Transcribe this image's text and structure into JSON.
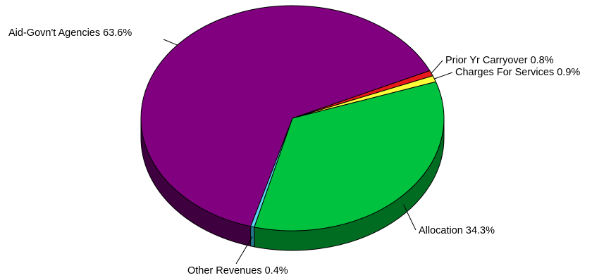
{
  "chart_data": {
    "type": "pie",
    "style": "3d-pie",
    "legend": "none",
    "slices": [
      {
        "label": "Prior Yr Carryover",
        "value": 0.8,
        "display": "0.8%",
        "color": "#e8191c",
        "side_color": "#7a0a0c"
      },
      {
        "label": "Charges For Services",
        "value": 0.9,
        "display": "0.9%",
        "color": "#fdfd3a",
        "side_color": "#8f8f10"
      },
      {
        "label": "Allocation",
        "value": 34.3,
        "display": "34.3%",
        "color": "#00c23f",
        "side_color": "#006c22"
      },
      {
        "label": "Other Revenues",
        "value": 0.4,
        "display": "0.4%",
        "color": "#57d3f0",
        "side_color": "#247a8c"
      },
      {
        "label": "Aid-Govn't Agencies",
        "value": 63.6,
        "display": "63.6%",
        "color": "#800080",
        "side_color": "#3f003f"
      }
    ]
  }
}
